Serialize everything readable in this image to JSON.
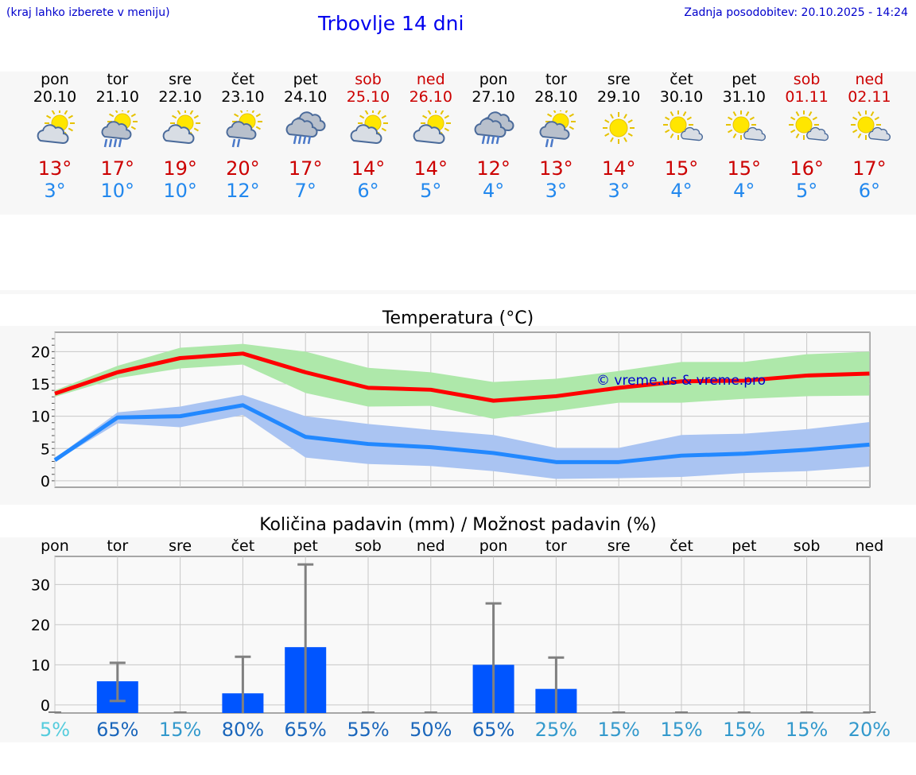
{
  "header": {
    "hint": "(kraj lahko izberete v meniju)",
    "title": "Trbovlje 14 dni",
    "updated": "Zadnja posodobitev: 20.10.2025 - 14:24"
  },
  "days": [
    {
      "name": "pon",
      "date": "20.10",
      "tmax": "13°",
      "tmin": "3°",
      "icon": "sun-cloud-icon",
      "weekend": false
    },
    {
      "name": "tor",
      "date": "21.10",
      "tmax": "17°",
      "tmin": "10°",
      "icon": "sun-cloud-rain-icon",
      "weekend": false
    },
    {
      "name": "sre",
      "date": "22.10",
      "tmax": "19°",
      "tmin": "10°",
      "icon": "sun-cloud-icon",
      "weekend": false
    },
    {
      "name": "čet",
      "date": "23.10",
      "tmax": "20°",
      "tmin": "12°",
      "icon": "sun-cloud-light-rain-icon",
      "weekend": false
    },
    {
      "name": "pet",
      "date": "24.10",
      "tmax": "17°",
      "tmin": "7°",
      "icon": "cloud-rain-icon",
      "weekend": false
    },
    {
      "name": "sob",
      "date": "25.10",
      "tmax": "14°",
      "tmin": "6°",
      "icon": "sun-cloud-icon",
      "weekend": true
    },
    {
      "name": "ned",
      "date": "26.10",
      "tmax": "14°",
      "tmin": "5°",
      "icon": "sun-cloud-icon",
      "weekend": true
    },
    {
      "name": "pon",
      "date": "27.10",
      "tmax": "12°",
      "tmin": "4°",
      "icon": "cloud-rain-icon",
      "weekend": false
    },
    {
      "name": "tor",
      "date": "28.10",
      "tmax": "13°",
      "tmin": "3°",
      "icon": "sun-cloud-light-rain-icon",
      "weekend": false
    },
    {
      "name": "sre",
      "date": "29.10",
      "tmax": "14°",
      "tmin": "3°",
      "icon": "sun-icon",
      "weekend": false
    },
    {
      "name": "čet",
      "date": "30.10",
      "tmax": "15°",
      "tmin": "4°",
      "icon": "sun-small-cloud-icon",
      "weekend": false
    },
    {
      "name": "pet",
      "date": "31.10",
      "tmax": "15°",
      "tmin": "4°",
      "icon": "sun-small-cloud-icon",
      "weekend": false
    },
    {
      "name": "sob",
      "date": "01.11",
      "tmax": "16°",
      "tmin": "5°",
      "icon": "sun-small-cloud-icon",
      "weekend": true
    },
    {
      "name": "ned",
      "date": "02.11",
      "tmax": "17°",
      "tmin": "6°",
      "icon": "sun-small-cloud-icon",
      "weekend": true
    }
  ],
  "colors": {
    "max": "#ff0000",
    "max_band": "#aee8aa",
    "min": "#2288ff",
    "min_band": "#aac4f2",
    "bar": "#0055ff",
    "error": "#808080",
    "watermark": "#0000cc"
  },
  "chart_data": [
    {
      "type": "line",
      "title": "Temperatura (°C)",
      "watermark": "© vreme.us & vreme.pro",
      "x": [
        "pon",
        "tor",
        "sre",
        "čet",
        "pet",
        "sob",
        "ned",
        "pon",
        "tor",
        "sre",
        "čet",
        "pet",
        "sob",
        "ned"
      ],
      "ylim": [
        -1,
        23
      ],
      "yticks": [
        0,
        5,
        10,
        15,
        20
      ],
      "series": [
        {
          "name": "max",
          "values": [
            13.5,
            16.8,
            19.0,
            19.7,
            16.8,
            14.4,
            14.1,
            12.4,
            13.1,
            14.4,
            15.4,
            15.5,
            16.3,
            16.6
          ],
          "upper": [
            14.0,
            17.8,
            20.6,
            21.2,
            20.0,
            17.5,
            16.8,
            15.3,
            15.8,
            17.0,
            18.4,
            18.4,
            19.6,
            20.0
          ],
          "lower": [
            13.0,
            15.9,
            17.4,
            18.0,
            13.6,
            11.5,
            11.6,
            9.6,
            10.8,
            12.1,
            12.1,
            12.7,
            13.1,
            13.2
          ]
        },
        {
          "name": "min",
          "values": [
            3.2,
            9.8,
            10.0,
            11.7,
            6.8,
            5.7,
            5.2,
            4.3,
            2.9,
            2.9,
            3.9,
            4.2,
            4.8,
            5.6
          ],
          "upper": [
            3.5,
            10.6,
            11.5,
            13.3,
            10.0,
            8.8,
            7.9,
            7.1,
            5.1,
            5.1,
            7.1,
            7.3,
            8.0,
            9.1
          ],
          "lower": [
            3.0,
            8.9,
            8.3,
            10.2,
            3.6,
            2.6,
            2.3,
            1.5,
            0.3,
            0.4,
            0.6,
            1.2,
            1.5,
            2.2
          ]
        }
      ]
    },
    {
      "type": "bar",
      "title": "Količina padavin (mm) / Možnost padavin (%)",
      "categories": [
        "pon",
        "tor",
        "sre",
        "čet",
        "pet",
        "sob",
        "ned",
        "pon",
        "tor",
        "sre",
        "čet",
        "pet",
        "sob",
        "ned"
      ],
      "values": [
        0,
        5.9,
        0,
        2.9,
        14.4,
        0,
        0,
        10.0,
        4.0,
        0,
        0,
        0,
        0,
        0
      ],
      "error_low": [
        0,
        1.0,
        0,
        0,
        0,
        0,
        0,
        0,
        0,
        0,
        0,
        0,
        0,
        0
      ],
      "error_high": [
        0,
        10.5,
        0,
        12.0,
        35.0,
        0,
        0,
        25.3,
        11.8,
        0,
        0,
        0,
        0,
        0
      ],
      "chance": [
        "5%",
        "65%",
        "15%",
        "80%",
        "65%",
        "55%",
        "50%",
        "65%",
        "25%",
        "15%",
        "15%",
        "15%",
        "15%",
        "20%"
      ],
      "chance_colors": [
        "#55ccdd",
        "#1a66bb",
        "#3399cc",
        "#1a66bb",
        "#1a66bb",
        "#1a66bb",
        "#1a66bb",
        "#1a66bb",
        "#3399cc",
        "#3399cc",
        "#3399cc",
        "#3399cc",
        "#3399cc",
        "#3399cc"
      ],
      "ylim": [
        -2,
        37
      ],
      "yticks": [
        0,
        10,
        20,
        30
      ]
    }
  ]
}
